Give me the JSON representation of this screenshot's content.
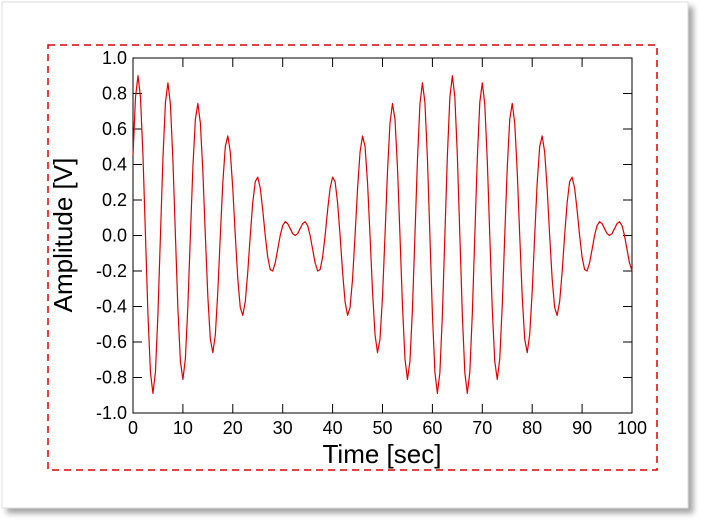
{
  "chart_data": {
    "type": "line",
    "xlabel": "Time [sec]",
    "ylabel": "Amplitude [V]",
    "color": "#e00000",
    "xlim": [
      0,
      100
    ],
    "xticks": [
      0,
      10,
      20,
      30,
      40,
      50,
      60,
      70,
      80,
      90,
      100
    ],
    "ylim": [
      -1,
      1
    ],
    "yticks": [
      {
        "value": -1,
        "label": "-1.0"
      },
      -0.8,
      -0.6,
      -0.4,
      -0.2,
      {
        "value": 0,
        "label": "0.0"
      },
      0.2,
      0.4,
      0.6,
      0.8,
      {
        "value": 1,
        "label": "1.0"
      }
    ],
    "grid": false,
    "x": [
      0,
      0.5,
      1,
      1.5,
      2,
      2.5,
      3,
      3.5,
      4,
      4.5,
      5,
      5.5,
      6,
      6.5,
      7,
      7.5,
      8,
      8.5,
      9,
      9.5,
      10,
      10.5,
      11,
      11.5,
      12,
      12.5,
      13,
      13.5,
      14,
      14.5,
      15,
      15.5,
      16,
      16.5,
      17,
      17.5,
      18,
      18.5,
      19,
      19.5,
      20,
      20.5,
      21,
      21.5,
      22,
      22.5,
      23,
      23.5,
      24,
      24.5,
      25,
      25.5,
      26,
      26.5,
      27,
      27.5,
      28,
      28.5,
      29,
      29.5,
      30,
      30.5,
      31,
      31.5,
      32,
      32.5,
      33,
      33.5,
      34,
      34.5,
      35,
      35.5,
      36,
      36.5,
      37,
      37.5,
      38,
      38.5,
      39,
      39.5,
      40,
      40.5,
      41,
      41.5,
      42,
      42.5,
      43,
      43.5,
      44,
      44.5,
      45,
      45.5,
      46,
      46.5,
      47,
      47.5,
      48,
      48.5,
      49,
      49.5,
      50,
      50.5,
      51,
      51.5,
      52,
      52.5,
      53,
      53.5,
      54,
      54.5,
      55,
      55.5,
      56,
      56.5,
      57,
      57.5,
      58,
      58.5,
      59,
      59.5,
      60,
      60.5,
      61,
      61.5,
      62,
      62.5,
      63,
      63.5,
      64,
      64.5,
      65,
      65.5,
      66,
      66.5,
      67,
      67.5,
      68,
      68.5,
      69,
      69.5,
      70,
      70.5,
      71,
      71.5,
      72,
      72.5,
      73,
      73.5,
      74,
      74.5,
      75,
      75.5,
      76,
      76.5,
      77,
      77.5,
      78,
      78.5,
      79,
      79.5,
      80,
      80.5,
      81,
      81.5,
      82,
      82.5,
      83,
      83.5,
      84,
      84.5,
      85,
      85.5,
      86,
      86.5,
      87,
      87.5,
      88,
      88.5,
      89,
      89.5,
      90,
      90.5,
      91,
      91.5,
      92,
      92.5,
      93,
      93.5,
      94,
      94.5,
      95,
      95.5,
      96,
      96.5,
      97,
      97.5,
      98,
      98.5,
      99,
      99.5,
      100
    ],
    "values": [
      0.45,
      0.779,
      0.9,
      0.779,
      0.449,
      0,
      -0.448,
      -0.773,
      -0.89,
      -0.768,
      -0.441,
      0,
      0.436,
      0.75,
      0.86,
      0.739,
      0.423,
      0,
      -0.415,
      -0.71,
      -0.811,
      -0.694,
      -0.395,
      0,
      0.384,
      0.655,
      0.744,
      0.633,
      0.359,
      0,
      -0.345,
      -0.584,
      -0.66,
      -0.558,
      -0.314,
      0,
      0.298,
      0.501,
      0.561,
      0.47,
      0.263,
      0,
      -0.244,
      -0.406,
      -0.45,
      -0.373,
      -0.205,
      0,
      0.185,
      0.303,
      0.329,
      0.267,
      0.143,
      0,
      -0.122,
      -0.192,
      -0.2,
      -0.154,
      -0.078,
      0,
      0.056,
      0.078,
      0.067,
      0.039,
      0.011,
      0,
      0.011,
      0.039,
      0.067,
      0.078,
      0.056,
      0,
      -0.078,
      -0.154,
      -0.2,
      -0.192,
      -0.122,
      0,
      0.143,
      0.267,
      0.329,
      0.303,
      0.185,
      0,
      -0.205,
      -0.373,
      -0.45,
      -0.406,
      -0.244,
      0,
      0.263,
      0.47,
      0.561,
      0.501,
      0.298,
      0,
      -0.314,
      -0.558,
      -0.66,
      -0.584,
      -0.345,
      0,
      0.359,
      0.633,
      0.744,
      0.655,
      0.384,
      0,
      -0.395,
      -0.694,
      -0.811,
      -0.71,
      -0.415,
      0,
      0.423,
      0.739,
      0.86,
      0.75,
      0.436,
      0,
      -0.441,
      -0.768,
      -0.89,
      -0.773,
      -0.448,
      0,
      0.449,
      0.779,
      0.9,
      0.779,
      0.449,
      0,
      -0.448,
      -0.773,
      -0.89,
      -0.768,
      -0.441,
      0,
      0.436,
      0.75,
      0.86,
      0.739,
      0.423,
      0,
      -0.415,
      -0.71,
      -0.811,
      -0.694,
      -0.395,
      0,
      0.384,
      0.655,
      0.744,
      0.633,
      0.359,
      0,
      -0.345,
      -0.584,
      -0.66,
      -0.558,
      -0.314,
      0,
      0.298,
      0.501,
      0.561,
      0.47,
      0.263,
      0,
      -0.244,
      -0.406,
      -0.45,
      -0.373,
      -0.205,
      0,
      0.185,
      0.303,
      0.329,
      0.267,
      0.143,
      0,
      -0.122,
      -0.192,
      -0.2,
      -0.154,
      -0.078,
      0,
      0.056,
      0.078,
      0.067,
      0.039,
      0.011,
      0,
      0.011,
      0.039,
      0.067,
      0.078,
      0.056,
      0,
      -0.078,
      -0.154,
      -0.2
    ]
  }
}
